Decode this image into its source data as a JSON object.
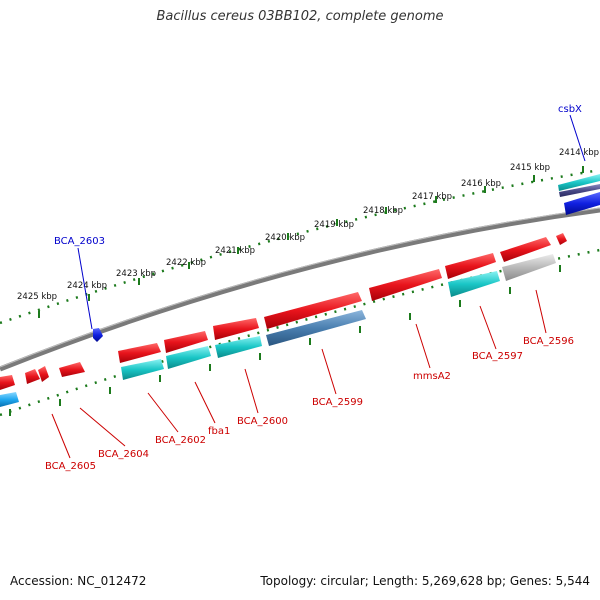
{
  "title": "Bacillus cereus 03BB102, complete genome",
  "footer": {
    "accession": "Accession: NC_012472",
    "topology": "Topology: circular; Length: 5,269,628 bp; Genes: 5,544"
  },
  "colors": {
    "backbone": "#7a7a7a",
    "tick": "#1c7a1c",
    "forward_gene": "#e8141c",
    "reverse_gene": "#1ac6c6",
    "rrna_gene": "#4a7fb0",
    "pseudo_gene": "#b8b8b8",
    "label_red": "#cc0000",
    "label_blue": "#0000cc",
    "blue_feature": "#1020e0"
  },
  "scale": {
    "upper_ticks": [
      "2414 kbp",
      "2415 kbp",
      "2416 kbp",
      "2417 kbp",
      "2418 kbp",
      "2419 kbp",
      "2420 kbp",
      "2421 kbp",
      "2422 kbp",
      "2423 kbp",
      "2424 kbp",
      "2425 kbp"
    ],
    "lower_ticks_count": 12
  },
  "gene_labels": [
    {
      "name": "csbX",
      "color": "blue"
    },
    {
      "name": "BCA_2603",
      "color": "blue"
    },
    {
      "name": "BCA_2605",
      "color": "red"
    },
    {
      "name": "BCA_2604",
      "color": "red"
    },
    {
      "name": "BCA_2602",
      "color": "red"
    },
    {
      "name": "fba1",
      "color": "red"
    },
    {
      "name": "BCA_2600",
      "color": "red"
    },
    {
      "name": "BCA_2599",
      "color": "red"
    },
    {
      "name": "mmsA2",
      "color": "red"
    },
    {
      "name": "BCA_2597",
      "color": "red"
    },
    {
      "name": "BCA_2596",
      "color": "red"
    }
  ]
}
